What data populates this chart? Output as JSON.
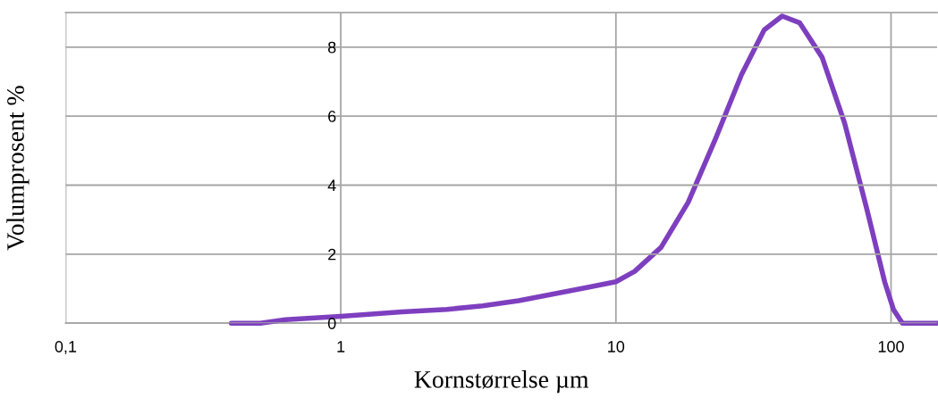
{
  "chart_data": {
    "type": "line",
    "xlabel": "Kornstørrelse µm",
    "ylabel": "Volumprosent %",
    "log": "x",
    "xlim": [
      0.1,
      147
    ],
    "ylim": [
      0,
      9
    ],
    "xticks": [
      {
        "value": 0.1,
        "label": "0,1"
      },
      1,
      10,
      100
    ],
    "yticks": [
      0,
      2,
      4,
      6,
      8
    ],
    "grid": true,
    "series": [
      {
        "color": "#7e3fbf",
        "x": [
          0.4,
          0.51,
          0.63,
          1,
          1.67,
          2.43,
          3.28,
          4.43,
          5.98,
          8.06,
          10,
          11.7,
          14.6,
          18.3,
          22.9,
          28.6,
          34.6,
          40.2,
          46.6,
          56.2,
          67.8,
          81.7,
          94.8,
          102,
          110,
          147
        ],
        "values": [
          0,
          0,
          0.1,
          0.2,
          0.33,
          0.4,
          0.5,
          0.65,
          0.85,
          1.05,
          1.2,
          1.5,
          2.2,
          3.5,
          5.3,
          7.2,
          8.5,
          8.9,
          8.7,
          7.7,
          5.8,
          3.3,
          1.2,
          0.4,
          0,
          0
        ]
      }
    ]
  }
}
